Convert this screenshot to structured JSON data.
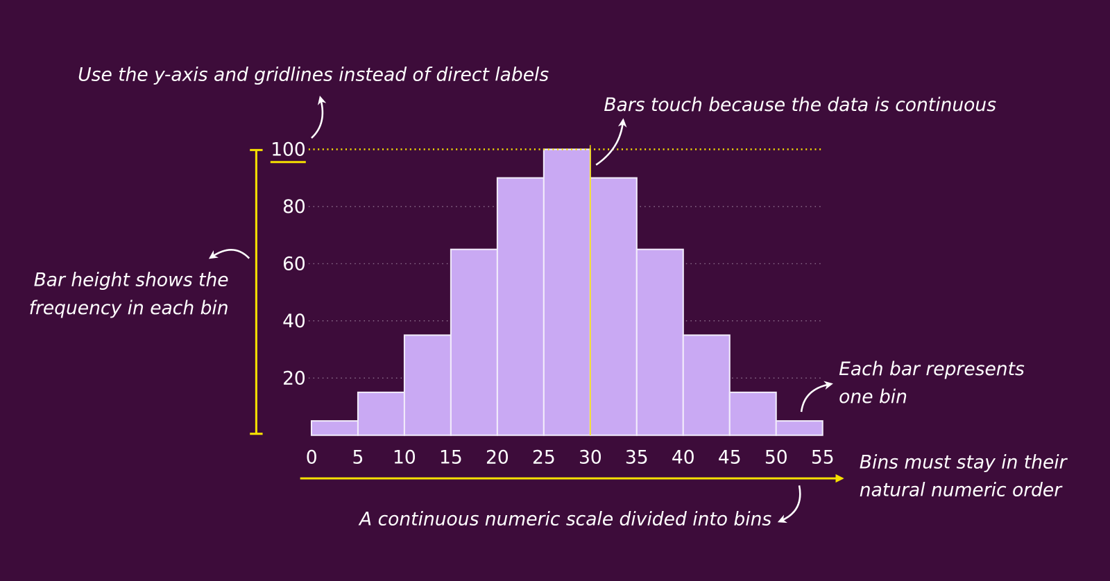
{
  "colors": {
    "background": "#3d0c3a",
    "bar_fill": "#c9a9f3",
    "bar_stroke": "#f2ecfb",
    "accent": "#f5e000",
    "text": "#ffffff",
    "grid": "#9a7f9a"
  },
  "annotations": {
    "top": "Use the y-axis and gridlines instead of direct labels",
    "bars_touch": "Bars touch because the data is continuous",
    "bar_height_line1": "Bar height shows the",
    "bar_height_line2": "frequency in each bin",
    "each_bar_line1": "Each bar represents",
    "each_bar_line2": "one bin",
    "order_line1": "Bins must stay in their",
    "order_line2": "natural numeric order",
    "scale": "A continuous numeric scale divided into bins"
  },
  "chart_data": {
    "type": "bar",
    "subtype": "histogram",
    "bin_edges": [
      0,
      5,
      10,
      15,
      20,
      25,
      30,
      35,
      40,
      45,
      50,
      55
    ],
    "values": [
      5,
      15,
      35,
      65,
      90,
      100,
      90,
      65,
      35,
      15,
      5
    ],
    "x_ticks": [
      "0",
      "5",
      "10",
      "15",
      "20",
      "25",
      "30",
      "35",
      "40",
      "45",
      "50",
      "55"
    ],
    "y_ticks": [
      "20",
      "40",
      "60",
      "80",
      "100"
    ],
    "xlim": [
      0,
      55
    ],
    "ylim": [
      0,
      100
    ],
    "grid": "horizontal dotted",
    "highlighted_gridline": 100,
    "highlighted_edge": 30
  }
}
